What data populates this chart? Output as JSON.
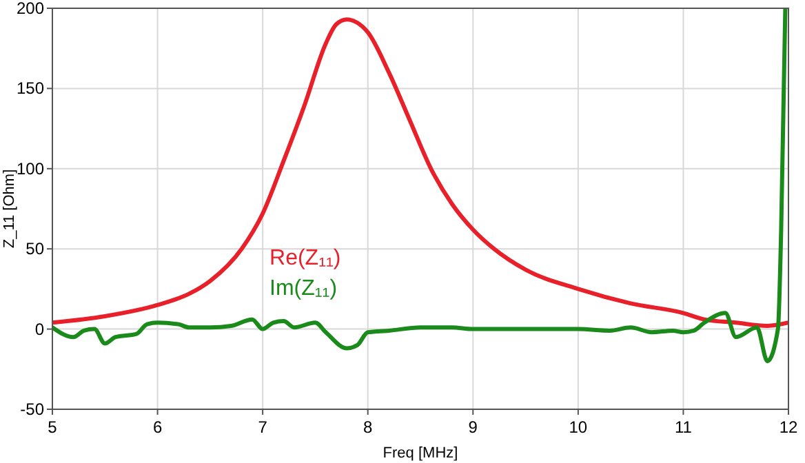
{
  "chart_data": {
    "type": "line",
    "xlabel": "Freq [MHz]",
    "ylabel": "Z_11 [Ohm]",
    "xlim": [
      5,
      12
    ],
    "ylim": [
      -50,
      200
    ],
    "xticks": [
      5,
      6,
      7,
      8,
      9,
      10,
      11,
      12
    ],
    "yticks": [
      -50,
      0,
      50,
      100,
      150,
      200
    ],
    "grid": true,
    "legend": "center",
    "line_style": "solid",
    "marker": "none",
    "series": [
      {
        "name": "Re(Z₁₁)",
        "color": "#e8202a",
        "x": [
          5,
          5.5,
          6,
          6.3,
          6.5,
          6.8,
          7,
          7.2,
          7.4,
          7.6,
          7.7,
          7.8,
          7.9,
          8,
          8.2,
          8.4,
          8.6,
          8.8,
          9,
          9.2,
          9.5,
          10,
          10.5,
          11,
          11.2,
          11.5,
          11.8,
          12
        ],
        "values": [
          4,
          8,
          15,
          22,
          30,
          50,
          72,
          105,
          140,
          178,
          190,
          193,
          191,
          185,
          160,
          130,
          100,
          78,
          62,
          50,
          37,
          25,
          16,
          10,
          6,
          4,
          2,
          4
        ]
      },
      {
        "name": "Im(Z₁₁)",
        "color": "#1a8a1a",
        "x": [
          5,
          5.2,
          5.3,
          5.4,
          5.5,
          5.6,
          5.8,
          5.9,
          6,
          6.2,
          6.3,
          6.5,
          6.7,
          6.9,
          7,
          7.1,
          7.2,
          7.3,
          7.5,
          7.6,
          7.8,
          7.9,
          8,
          8.2,
          8.5,
          8.8,
          9,
          9.5,
          10,
          10.3,
          10.5,
          10.7,
          10.9,
          11,
          11.1,
          11.2,
          11.4,
          11.5,
          11.7,
          11.8,
          11.9,
          11.93,
          11.97
        ],
        "values": [
          1,
          -5,
          -1,
          0,
          -9,
          -5,
          -3,
          3,
          4,
          3,
          1,
          1,
          2,
          6,
          0,
          4,
          5,
          1,
          4,
          -2,
          -12,
          -10,
          -2,
          -1,
          1,
          1,
          0,
          0,
          0,
          -1,
          1,
          -2,
          -1,
          -2,
          -1,
          4,
          10,
          -5,
          1,
          -20,
          0,
          60,
          200
        ]
      }
    ]
  }
}
